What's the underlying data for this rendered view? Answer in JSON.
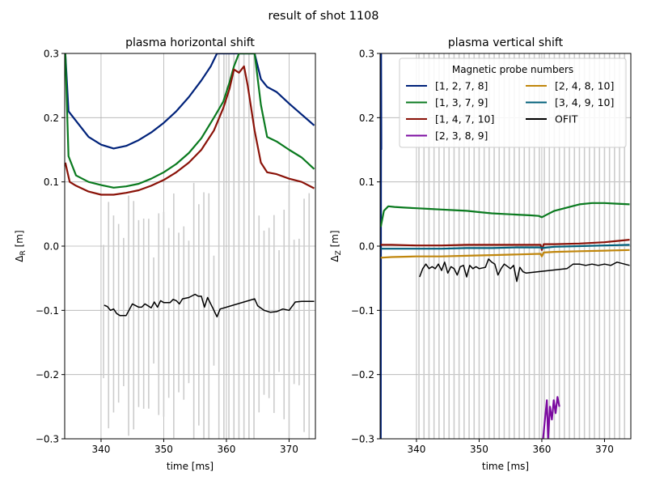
{
  "figure": {
    "suptitle": "result of shot 1108"
  },
  "chart_data": [
    {
      "type": "line",
      "title": "plasma horizontal shift",
      "xlabel": "time [ms]",
      "ylabel": "Δ_R [m]",
      "xlim": [
        334.2,
        374.2
      ],
      "ylim": [
        -0.3,
        0.3
      ],
      "xticks": [
        340,
        350,
        360,
        370
      ],
      "xtick_labels": [
        "340",
        "350",
        "360",
        "370"
      ],
      "yticks": [
        -0.3,
        -0.2,
        -0.1,
        0.0,
        0.1,
        0.2,
        0.3
      ],
      "ytick_labels": [
        "−0.3",
        "−0.2",
        "−0.1",
        "0.0",
        "0.1",
        "0.2",
        "0.3"
      ],
      "grid": true,
      "series": [
        {
          "name": "[1, 2, 7, 8]",
          "color": "#00227a",
          "x": [
            334.3,
            334.8,
            336,
            338,
            340,
            342,
            344,
            346,
            348,
            350,
            352,
            354,
            356,
            357.5,
            358.5,
            359.5,
            360.5,
            361.5,
            362.2,
            363.5,
            364.5,
            365.5,
            366.5,
            368,
            370,
            372,
            374
          ],
          "y": [
            0.3,
            0.21,
            0.195,
            0.17,
            0.158,
            0.152,
            0.156,
            0.165,
            0.177,
            0.192,
            0.21,
            0.232,
            0.258,
            0.28,
            0.3,
            0.3,
            0.3,
            0.3,
            0.3,
            0.3,
            0.3,
            0.26,
            0.248,
            0.24,
            0.222,
            0.205,
            0.188
          ]
        },
        {
          "name": "[1, 3, 7, 9]",
          "color": "#0a7a1f",
          "x": [
            334.3,
            334.8,
            336,
            338,
            340,
            342,
            344,
            346,
            348,
            350,
            352,
            354,
            356,
            358,
            359.5,
            360.5,
            361.2,
            362,
            362.7,
            363.5,
            364.5,
            365.5,
            366.5,
            368,
            370,
            372,
            374
          ],
          "y": [
            0.3,
            0.14,
            0.11,
            0.1,
            0.095,
            0.091,
            0.093,
            0.097,
            0.105,
            0.115,
            0.128,
            0.145,
            0.168,
            0.2,
            0.225,
            0.255,
            0.28,
            0.3,
            0.3,
            0.3,
            0.3,
            0.22,
            0.17,
            0.163,
            0.15,
            0.138,
            0.12
          ]
        },
        {
          "name": "[1, 4, 7, 10]",
          "color": "#8a1208",
          "x": [
            334.3,
            335,
            336,
            338,
            340,
            342,
            344,
            346,
            348,
            350,
            352,
            354,
            356,
            358,
            359.5,
            360.5,
            361.2,
            362,
            362.8,
            363.4,
            364.5,
            365.5,
            366.5,
            368,
            370,
            372,
            374
          ],
          "y": [
            0.13,
            0.1,
            0.094,
            0.085,
            0.08,
            0.08,
            0.083,
            0.087,
            0.094,
            0.103,
            0.115,
            0.13,
            0.15,
            0.18,
            0.215,
            0.245,
            0.275,
            0.27,
            0.28,
            0.25,
            0.18,
            0.13,
            0.115,
            0.112,
            0.105,
            0.1,
            0.09
          ]
        },
        {
          "name": "OFIT",
          "color": "#000000",
          "x": [
            340.5,
            341,
            341.5,
            342,
            342.5,
            343,
            344,
            345,
            346,
            346.5,
            347,
            348,
            348.5,
            349,
            349.5,
            350,
            351,
            351.5,
            352,
            352.5,
            353,
            354,
            355,
            355.5,
            356,
            356.5,
            357,
            357.5,
            358,
            358.5,
            359,
            364.5,
            365,
            366,
            367,
            368,
            369,
            370,
            371,
            372,
            374
          ],
          "y": [
            -0.092,
            -0.094,
            -0.1,
            -0.098,
            -0.105,
            -0.108,
            -0.108,
            -0.09,
            -0.095,
            -0.095,
            -0.09,
            -0.096,
            -0.087,
            -0.095,
            -0.085,
            -0.088,
            -0.088,
            -0.083,
            -0.085,
            -0.09,
            -0.082,
            -0.08,
            -0.075,
            -0.078,
            -0.078,
            -0.095,
            -0.08,
            -0.09,
            -0.1,
            -0.11,
            -0.098,
            -0.082,
            -0.093,
            -0.1,
            -0.103,
            -0.102,
            -0.098,
            -0.1,
            -0.087,
            -0.086,
            -0.086
          ]
        }
      ],
      "error_bars": {
        "color": "#cccccc",
        "x_start": 340.4,
        "x_end": 374.0,
        "step": 0.8
      }
    },
    {
      "type": "line",
      "title": "plasma vertical shift",
      "xlabel": "time [ms]",
      "ylabel": "Δ_Z [m]",
      "xlim": [
        334.2,
        374.2
      ],
      "ylim": [
        -0.3,
        0.3
      ],
      "xticks": [
        340,
        350,
        360,
        370
      ],
      "xtick_labels": [
        "340",
        "350",
        "360",
        "370"
      ],
      "yticks": [
        -0.3,
        -0.2,
        -0.1,
        0.0,
        0.1,
        0.2,
        0.3
      ],
      "ytick_labels": [
        "−0.3",
        "−0.2",
        "−0.1",
        "0.0",
        "0.1",
        "0.2",
        "0.3"
      ],
      "grid": true,
      "legend": {
        "title": "Magnetic probe numbers",
        "placement": "top-right",
        "columns": 2,
        "entries": [
          {
            "name": "[1, 2, 7, 8]",
            "color": "#00227a"
          },
          {
            "name": "[1, 3, 7, 9]",
            "color": "#0a7a1f"
          },
          {
            "name": "[1, 4, 7, 10]",
            "color": "#8a1208"
          },
          {
            "name": "[2, 3, 8, 9]",
            "color": "#7b0aa0"
          },
          {
            "name": "[2, 4, 8, 10]",
            "color": "#c0860c"
          },
          {
            "name": "[3, 4, 9, 10]",
            "color": "#005f7a"
          },
          {
            "name": "OFIT",
            "color": "#000000"
          }
        ]
      },
      "series": [
        {
          "name": "[1, 2, 7, 8]",
          "color": "#00227a",
          "x": [
            334.25,
            334.3,
            334.35,
            334.4
          ],
          "y": [
            0.3,
            -0.3,
            0.3,
            0.15
          ]
        },
        {
          "name": "[1, 3, 7, 9]",
          "color": "#0a7a1f",
          "x": [
            334.3,
            334.8,
            335.5,
            336.5,
            338,
            340,
            342,
            344,
            346,
            348,
            350,
            352,
            354,
            356,
            358,
            359.5,
            360,
            361,
            362,
            364,
            366,
            368,
            370,
            372,
            374
          ],
          "y": [
            0.03,
            0.055,
            0.062,
            0.061,
            0.06,
            0.059,
            0.058,
            0.057,
            0.056,
            0.055,
            0.053,
            0.051,
            0.05,
            0.049,
            0.048,
            0.047,
            0.045,
            0.05,
            0.055,
            0.06,
            0.065,
            0.067,
            0.067,
            0.066,
            0.065
          ]
        },
        {
          "name": "[1, 4, 7, 10]",
          "color": "#8a1208",
          "x": [
            334.3,
            336,
            340,
            344,
            348,
            352,
            356,
            359.8,
            360,
            360.3,
            362,
            366,
            370,
            374
          ],
          "y": [
            0.002,
            0.002,
            0.001,
            0.001,
            0.002,
            0.002,
            0.002,
            0.002,
            -0.006,
            0.003,
            0.003,
            0.004,
            0.006,
            0.01
          ]
        },
        {
          "name": "[2, 3, 8, 9]",
          "color": "#7b0aa0",
          "x": [
            360.2,
            360.5,
            360.8,
            361,
            361.3,
            361.6,
            361.9,
            362.2,
            362.5,
            362.8
          ],
          "y": [
            -0.3,
            -0.27,
            -0.24,
            -0.3,
            -0.25,
            -0.27,
            -0.24,
            -0.26,
            -0.235,
            -0.25
          ]
        },
        {
          "name": "[2, 4, 8, 10]",
          "color": "#c0860c",
          "x": [
            334.3,
            336,
            340,
            344,
            348,
            352,
            356,
            359.8,
            360,
            360.3,
            362,
            366,
            370,
            374
          ],
          "y": [
            -0.018,
            -0.017,
            -0.016,
            -0.016,
            -0.015,
            -0.014,
            -0.013,
            -0.012,
            -0.016,
            -0.01,
            -0.009,
            -0.008,
            -0.007,
            -0.006
          ]
        },
        {
          "name": "[3, 4, 9, 10]",
          "color": "#005f7a",
          "x": [
            334.3,
            336,
            340,
            344,
            348,
            352,
            356,
            359.8,
            360,
            362,
            366,
            370,
            374
          ],
          "y": [
            -0.004,
            -0.004,
            -0.004,
            -0.004,
            -0.003,
            -0.003,
            -0.002,
            -0.002,
            -0.003,
            -0.001,
            0.0,
            0.001,
            0.002
          ]
        },
        {
          "name": "OFIT",
          "color": "#000000",
          "x": [
            340.5,
            341,
            341.5,
            342,
            342.5,
            343,
            343.5,
            344,
            344.5,
            345,
            345.5,
            346,
            346.5,
            347,
            347.5,
            348,
            348.5,
            349,
            349.5,
            350,
            351,
            351.5,
            352,
            352.5,
            353,
            353.5,
            354,
            355,
            355.5,
            356,
            356.5,
            357,
            357.5,
            364,
            365,
            366,
            367,
            368,
            369,
            370,
            371,
            372,
            374
          ],
          "y": [
            -0.048,
            -0.035,
            -0.028,
            -0.035,
            -0.032,
            -0.035,
            -0.028,
            -0.038,
            -0.025,
            -0.042,
            -0.032,
            -0.035,
            -0.045,
            -0.032,
            -0.03,
            -0.048,
            -0.03,
            -0.035,
            -0.032,
            -0.035,
            -0.033,
            -0.02,
            -0.025,
            -0.028,
            -0.045,
            -0.035,
            -0.028,
            -0.035,
            -0.03,
            -0.055,
            -0.033,
            -0.04,
            -0.042,
            -0.035,
            -0.028,
            -0.028,
            -0.03,
            -0.028,
            -0.03,
            -0.028,
            -0.03,
            -0.025,
            -0.03
          ]
        }
      ],
      "error_bars": {
        "color": "#cccccc",
        "x_start": 340.4,
        "x_end": 374.0,
        "step": 0.8
      }
    }
  ]
}
